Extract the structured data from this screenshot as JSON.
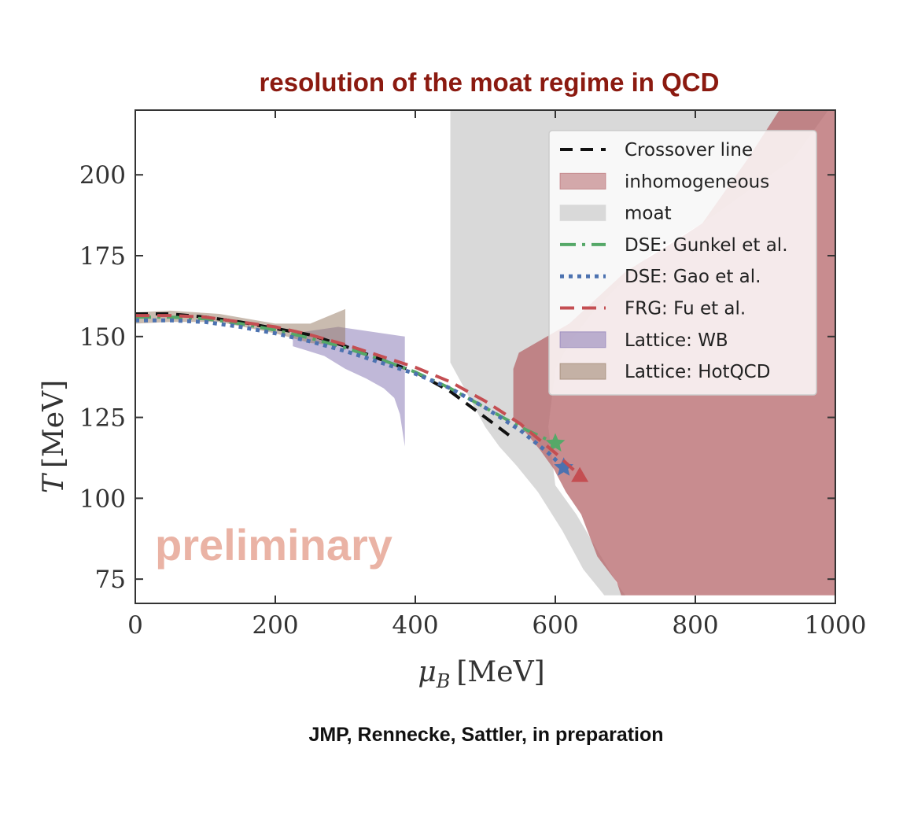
{
  "chart_data": {
    "type": "line",
    "title": "resolution of the moat regime in QCD",
    "xlabel_symbol": "μ",
    "xlabel_sub": "B",
    "xlabel_unit": "[MeV]",
    "ylabel_symbol": "T",
    "ylabel_unit": "[MeV]",
    "xlim": [
      0,
      1000
    ],
    "ylim": [
      67.5,
      220
    ],
    "x_ticks": [
      0,
      200,
      400,
      600,
      800,
      1000
    ],
    "y_ticks": [
      75,
      100,
      125,
      150,
      175,
      200
    ],
    "grid": false,
    "legend_position": "top-right",
    "watermark": "preliminary",
    "caption": "JMP, Rennecke, Sattler, in preparation",
    "colors": {
      "crossover": "#111111",
      "inhomogeneous": "#b5666a",
      "moat": "#d9d9d9",
      "dse_gunkel": "#55a868",
      "dse_gao": "#4c72b0",
      "frg_fu": "#c44e52",
      "lattice_wb": "#8172b2",
      "lattice_hotqcd": "#937860",
      "title": "#8b1a10"
    },
    "legend": [
      {
        "key": "crossover",
        "label": "Crossover line",
        "kind": "dashed-line"
      },
      {
        "key": "inhomogeneous",
        "label": "inhomogeneous",
        "kind": "patch"
      },
      {
        "key": "moat",
        "label": "moat",
        "kind": "patch"
      },
      {
        "key": "dse_gunkel",
        "label": "DSE: Gunkel et al.",
        "kind": "dashdot-line"
      },
      {
        "key": "dse_gao",
        "label": "DSE: Gao et al.",
        "kind": "dotted-line"
      },
      {
        "key": "frg_fu",
        "label": "FRG: Fu et al.",
        "kind": "dashed-line"
      },
      {
        "key": "lattice_wb",
        "label": "Lattice: WB",
        "kind": "patch"
      },
      {
        "key": "lattice_hotqcd",
        "label": "Lattice: HotQCD",
        "kind": "patch"
      }
    ],
    "regions": {
      "moat": [
        [
          450,
          220
        ],
        [
          983,
          220
        ],
        [
          980,
          205
        ],
        [
          880,
          180
        ],
        [
          740,
          145
        ],
        [
          630,
          113
        ],
        [
          690,
          70
        ],
        [
          800,
          70
        ],
        [
          1000,
          70
        ],
        [
          1000,
          220
        ],
        [
          450,
          220
        ],
        [
          450,
          140
        ],
        [
          460,
          132
        ],
        [
          475,
          120
        ],
        [
          488,
          110
        ],
        [
          500,
          104
        ],
        [
          528,
          95
        ],
        [
          560,
          87
        ],
        [
          600,
          77
        ],
        [
          650,
          70
        ],
        [
          800,
          70
        ]
      ],
      "inhomogeneous": [
        [
          540,
          140
        ],
        [
          548,
          145
        ],
        [
          620,
          154
        ],
        [
          660,
          162
        ],
        [
          700,
          170
        ],
        [
          760,
          178
        ],
        [
          810,
          185
        ],
        [
          875,
          205
        ],
        [
          920,
          220
        ],
        [
          1000,
          220
        ],
        [
          1000,
          70
        ],
        [
          694,
          70
        ],
        [
          688,
          74
        ],
        [
          660,
          82
        ],
        [
          637,
          95
        ],
        [
          615,
          102
        ],
        [
          598,
          109
        ],
        [
          578,
          115
        ],
        [
          540,
          125
        ]
      ],
      "lattice_wb": [
        [
          225,
          151
        ],
        [
          290,
          153
        ],
        [
          385,
          150
        ],
        [
          385,
          116
        ],
        [
          378,
          126
        ],
        [
          370,
          131
        ],
        [
          355,
          134
        ],
        [
          330,
          137
        ],
        [
          300,
          140
        ],
        [
          270,
          144
        ],
        [
          225,
          147
        ]
      ],
      "lattice_hotqcd": [
        [
          0,
          157.5
        ],
        [
          50,
          158
        ],
        [
          120,
          157
        ],
        [
          200,
          154
        ],
        [
          250,
          154
        ],
        [
          300,
          158.5
        ],
        [
          300,
          147
        ],
        [
          250,
          148
        ],
        [
          200,
          151
        ],
        [
          120,
          154.5
        ],
        [
          50,
          154.5
        ],
        [
          0,
          154
        ]
      ]
    },
    "series": [
      {
        "name": "Crossover line",
        "key": "crossover",
        "dash": "16 10",
        "x": [
          0,
          50,
          100,
          150,
          200,
          250,
          300,
          350,
          400,
          450,
          500,
          540
        ],
        "y": [
          157,
          157,
          156,
          154.5,
          152.5,
          150.5,
          147,
          143,
          139,
          133,
          125,
          118.5
        ]
      },
      {
        "name": "DSE: Gunkel et al.",
        "key": "dse_gunkel",
        "dash": "20 8 4 8",
        "x": [
          0,
          50,
          100,
          150,
          200,
          250,
          300,
          350,
          400,
          450,
          500,
          550,
          600
        ],
        "y": [
          156,
          156,
          155.5,
          154,
          152,
          149.5,
          146.5,
          143,
          139,
          134,
          128,
          122,
          117
        ],
        "end_marker": "star"
      },
      {
        "name": "DSE: Gao et al.",
        "key": "dse_gao",
        "dash": "5 6",
        "x": [
          0,
          50,
          100,
          150,
          200,
          250,
          300,
          350,
          400,
          450,
          500,
          550,
          590,
          612
        ],
        "y": [
          155,
          155,
          154.5,
          153,
          151,
          148.5,
          145.5,
          142,
          138.5,
          134,
          128,
          121,
          114,
          109.5
        ],
        "end_marker": "star"
      },
      {
        "name": "FRG: Fu et al.",
        "key": "frg_fu",
        "dash": "18 10",
        "x": [
          0,
          50,
          100,
          150,
          200,
          250,
          300,
          350,
          400,
          450,
          500,
          550,
          600,
          635
        ],
        "y": [
          156.5,
          156.5,
          156,
          154.5,
          153,
          150.5,
          147.5,
          144,
          140.5,
          136,
          130,
          123,
          114,
          107
        ],
        "end_marker": "triangle"
      }
    ]
  }
}
